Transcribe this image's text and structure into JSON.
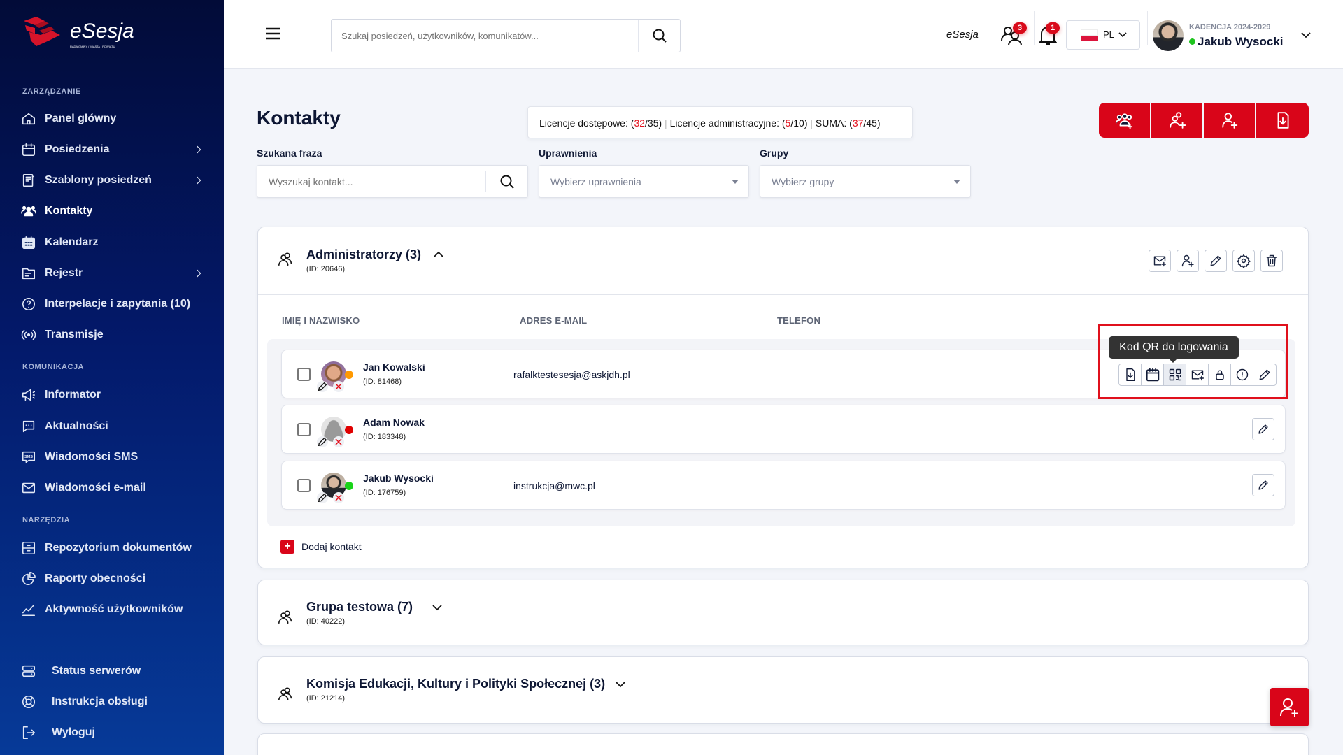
{
  "brand": {
    "logo_text": "eSesja",
    "logo_subtext": "RADA GMINY / MIASTA / POWIATU"
  },
  "sidebar": {
    "sections": [
      {
        "title": "ZARZĄDZANIE",
        "items": [
          {
            "label": "Panel główny",
            "icon": "home-icon",
            "chevron": false
          },
          {
            "label": "Posiedzenia",
            "icon": "calendar-icon",
            "chevron": true
          },
          {
            "label": "Szablony posiedzeń",
            "icon": "notebook-icon",
            "chevron": true
          },
          {
            "label": "Kontakty",
            "icon": "users-icon",
            "chevron": false,
            "active": true
          },
          {
            "label": "Kalendarz",
            "icon": "calendar-grid-icon",
            "chevron": false
          },
          {
            "label": "Rejestr",
            "icon": "folder-icon",
            "chevron": true
          },
          {
            "label": "Interpelacje i zapytania (10)",
            "icon": "question-icon",
            "chevron": false
          },
          {
            "label": "Transmisje",
            "icon": "broadcast-icon",
            "chevron": false
          }
        ]
      },
      {
        "title": "KOMUNIKACJA",
        "items": [
          {
            "label": "Informator",
            "icon": "megaphone-icon"
          },
          {
            "label": "Aktualności",
            "icon": "chat-icon"
          },
          {
            "label": "Wiadomości SMS",
            "icon": "sms-icon"
          },
          {
            "label": "Wiadomości e-mail",
            "icon": "mail-icon"
          }
        ]
      },
      {
        "title": "NARZĘDZIA",
        "items": [
          {
            "label": "Repozytorium dokumentów",
            "icon": "archive-icon"
          },
          {
            "label": "Raporty obecności",
            "icon": "pie-chart-icon"
          },
          {
            "label": "Aktywność użytkowników",
            "icon": "line-chart-icon"
          }
        ]
      }
    ],
    "bottom": [
      {
        "label": "Status serwerów",
        "icon": "server-icon"
      },
      {
        "label": "Instrukcja obsługi",
        "icon": "lifebuoy-icon"
      },
      {
        "label": "Wyloguj",
        "icon": "logout-icon"
      }
    ]
  },
  "header": {
    "search_placeholder": "Szukaj posiedzeń, użytkowników, komunikatów...",
    "app_label": "eSesja",
    "users_badge": "3",
    "notifications_badge": "1",
    "language": "PL",
    "term": "KADENCJA 2024-2029",
    "user_name": "Jakub Wysocki",
    "user_status_color": "#1ec41e"
  },
  "page": {
    "title": "Kontakty",
    "licenses": {
      "access_label": "Licencje dostępowe:",
      "access_used": "32",
      "access_total": "35",
      "admin_label": "Licencje administracyjne:",
      "admin_used": "5",
      "admin_total": "10",
      "sum_label": "SUMA:",
      "sum_used": "37",
      "sum_total": "45"
    },
    "filters": {
      "search_label": "Szukana fraza",
      "search_placeholder": "Wyszukaj kontakt...",
      "perm_label": "Uprawnienia",
      "perm_placeholder": "Wybierz uprawnienia",
      "groups_label": "Grupy",
      "groups_placeholder": "Wybierz grupy"
    },
    "toolbar": [
      "add-group-icon",
      "add-users-icon",
      "add-user-icon",
      "export-file-icon"
    ],
    "accent": "#d90519"
  },
  "groups": [
    {
      "title": "Administratorzy (3)",
      "id": "(ID: 20646)",
      "expanded": true,
      "columns": [
        "IMIĘ I NAZWISKO",
        "ADRES E-MAIL",
        "TELEFON"
      ],
      "rows": [
        {
          "name": "Jan Kowalski",
          "id": "(ID: 81468)",
          "email": "rafalktestesesja@askjdh.pl",
          "phone": "",
          "status_color": "#ff9900",
          "avatar": "photo-a"
        },
        {
          "name": "Adam Nowak",
          "id": "(ID: 183348)",
          "email": "",
          "phone": "",
          "status_color": "#e00000",
          "avatar": "placeholder"
        },
        {
          "name": "Jakub Wysocki",
          "id": "(ID: 176759)",
          "email": "instrukcja@mwc.pl",
          "phone": "",
          "status_color": "#19d419",
          "avatar": "photo-b"
        }
      ],
      "add_label": "Dodaj kontakt",
      "tooltip": "Kod QR do logowania"
    },
    {
      "title": "Grupa testowa (7)",
      "id": "(ID: 40222)",
      "expanded": false
    },
    {
      "title": "Komisja Edukacji, Kultury i Polityki Społecznej (3)",
      "id": "(ID: 21214)",
      "expanded": false
    }
  ]
}
